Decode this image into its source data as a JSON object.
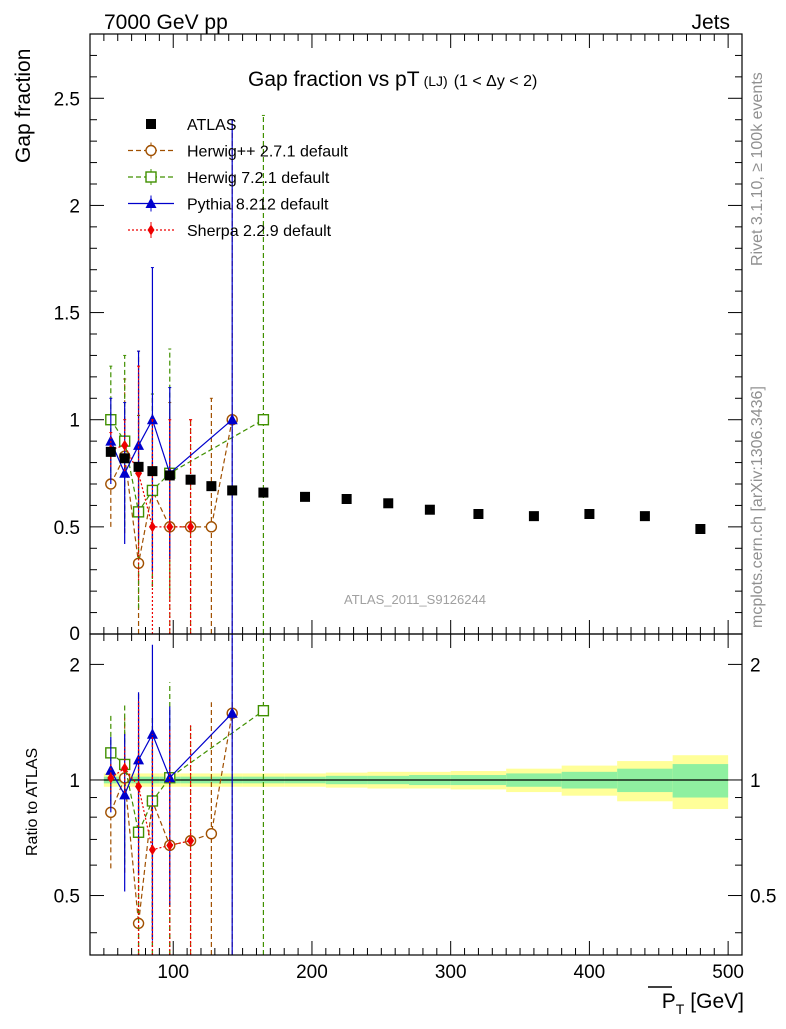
{
  "header": {
    "left": "7000 GeV pp",
    "right": "Jets"
  },
  "side_labels": {
    "top": "Rivet 3.1.10, ≥ 100k events",
    "bottom": "mcplots.cern.ch [arXiv:1306.3436]"
  },
  "chart_data": {
    "type": "scatter",
    "title": "Gap fraction vs pT",
    "title_sub": "(LJ)",
    "title_range": "(1 < Δy < 2)",
    "watermark": "ATLAS_2011_S9126244",
    "xlabel": "P",
    "xlabel_sub": "T",
    "xlabel_unit": "[GeV]",
    "ylabel": "Gap fraction",
    "ratio_ylabel": "Ratio to ATLAS",
    "xlim": [
      40,
      510
    ],
    "ylim": [
      0,
      2.8
    ],
    "ratio_ylim": [
      0.35,
      2.4
    ],
    "x_ticks": [
      100,
      200,
      300,
      400,
      500
    ],
    "x_tick_labels": [
      "100",
      "200",
      "300",
      "400",
      "500"
    ],
    "y_ticks": [
      0.5,
      1,
      1.5,
      2,
      2.5
    ],
    "y_tick_labels": [
      "0.5",
      "1",
      "1.5",
      "2",
      "2.5"
    ],
    "y_zero_label": "0",
    "ratio_y_ticks": [
      0.5,
      1,
      2
    ],
    "ratio_y_tick_labels": [
      "0.5",
      "1",
      "2"
    ],
    "data": {
      "name": "ATLAS",
      "color": "#000000",
      "x": [
        55,
        65,
        75,
        85,
        97.5,
        112.5,
        127.5,
        142.5,
        165,
        195,
        225,
        255,
        285,
        320,
        360,
        400,
        440,
        480
      ],
      "y": [
        0.85,
        0.82,
        0.78,
        0.76,
        0.74,
        0.72,
        0.69,
        0.67,
        0.66,
        0.64,
        0.63,
        0.61,
        0.58,
        0.56,
        0.55,
        0.56,
        0.55,
        0.49
      ],
      "band_x": [
        [
          50,
          60
        ],
        [
          60,
          70
        ],
        [
          70,
          80
        ],
        [
          80,
          90
        ],
        [
          90,
          105
        ],
        [
          105,
          120
        ],
        [
          120,
          135
        ],
        [
          135,
          150
        ],
        [
          150,
          180
        ],
        [
          180,
          210
        ],
        [
          210,
          240
        ],
        [
          240,
          270
        ],
        [
          270,
          300
        ],
        [
          300,
          340
        ],
        [
          340,
          380
        ],
        [
          380,
          420
        ],
        [
          420,
          460
        ],
        [
          460,
          500
        ]
      ],
      "band_inner": [
        0.02,
        0.02,
        0.02,
        0.02,
        0.02,
        0.02,
        0.02,
        0.02,
        0.02,
        0.02,
        0.025,
        0.025,
        0.03,
        0.03,
        0.04,
        0.05,
        0.07,
        0.1
      ],
      "band_outer": [
        0.04,
        0.04,
        0.04,
        0.04,
        0.04,
        0.04,
        0.04,
        0.04,
        0.04,
        0.04,
        0.045,
        0.05,
        0.05,
        0.055,
        0.07,
        0.09,
        0.12,
        0.16
      ]
    },
    "series": [
      {
        "name": "Herwig++ 2.7.1 default",
        "color": "#a05000",
        "marker": "circle",
        "dash": "5,3",
        "x": [
          55,
          65,
          75,
          85,
          97.5,
          112.5,
          127.5,
          142.5
        ],
        "y": [
          0.7,
          0.83,
          0.33,
          0.67,
          0.5,
          0.5,
          0.5,
          1.0
        ],
        "err": [
          0.2,
          0.36,
          0.99,
          0.45,
          0.58,
          0.5,
          0.6,
          1.4
        ]
      },
      {
        "name": "Herwig 7.2.1 default",
        "color": "#409000",
        "marker": "square",
        "dash": "5,3",
        "x": [
          55,
          65,
          75,
          85,
          97.5,
          165
        ],
        "y": [
          1.0,
          0.9,
          0.57,
          0.67,
          0.75,
          1.0
        ],
        "err": [
          0.25,
          0.4,
          0.45,
          0.45,
          0.58,
          1.42
        ]
      },
      {
        "name": "Pythia 8.212 default",
        "color": "#0000cc",
        "marker": "triangle",
        "dash": "",
        "x": [
          55,
          65,
          75,
          85,
          97.5,
          142.5
        ],
        "y": [
          0.9,
          0.75,
          0.88,
          1.0,
          0.75,
          1.0
        ],
        "err": [
          0.2,
          0.33,
          0.44,
          0.71,
          0.4,
          1.4
        ]
      },
      {
        "name": "Sherpa 2.2.9 default",
        "color": "#ee0000",
        "marker": "diamond",
        "dash": "2,2",
        "x": [
          55,
          65,
          75,
          85,
          97.5,
          112.5
        ],
        "y": [
          0.86,
          0.88,
          0.75,
          0.5,
          0.5,
          0.5
        ],
        "err": [
          0.08,
          0.12,
          0.5,
          0.5,
          0.5,
          0.5
        ]
      }
    ]
  }
}
